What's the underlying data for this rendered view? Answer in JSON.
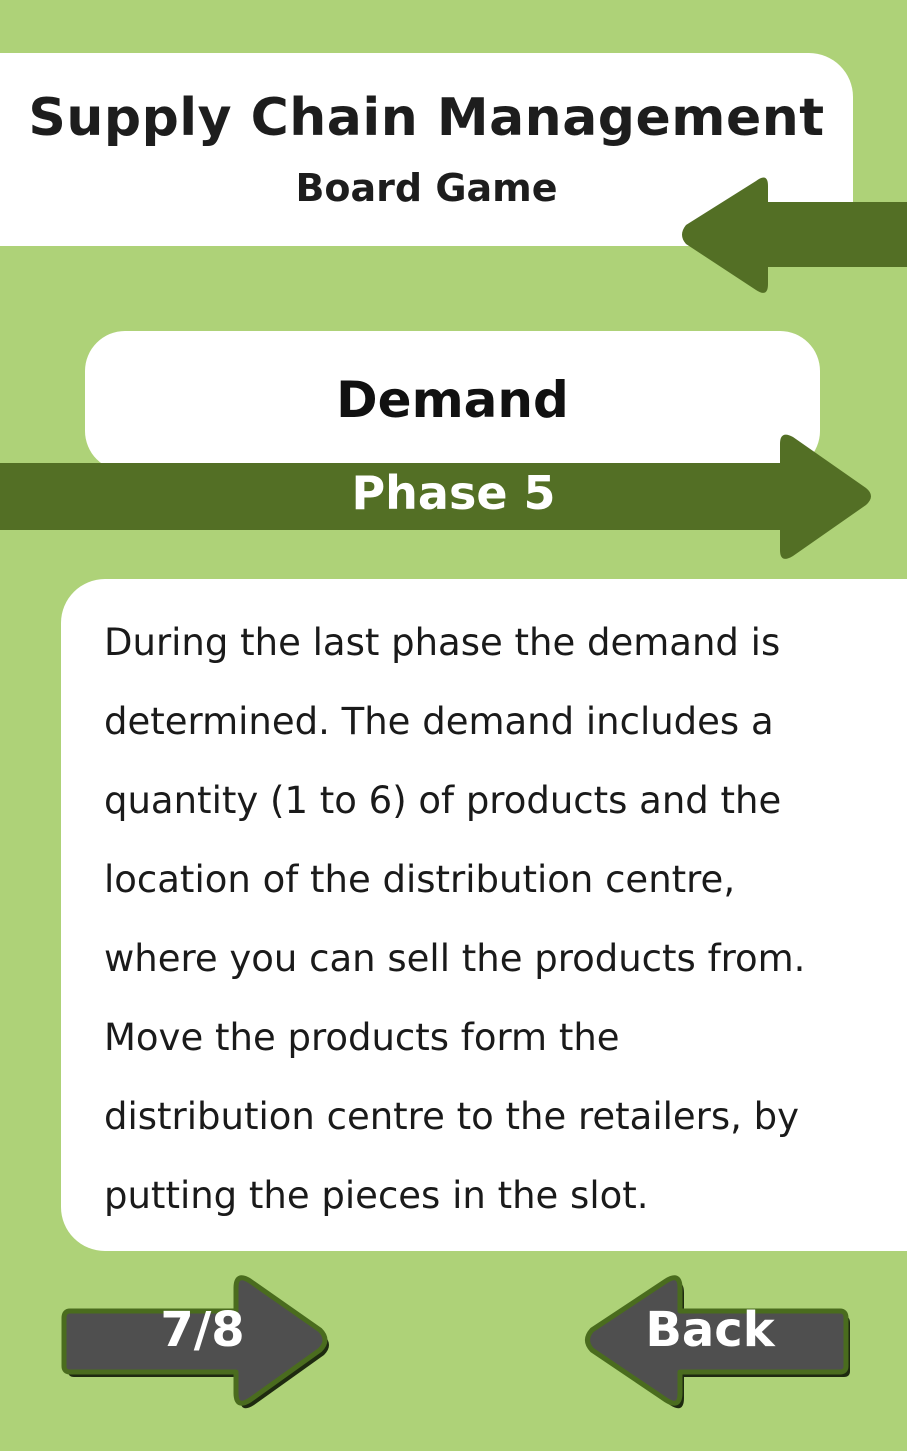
{
  "header": {
    "title": "Supply Chain Management",
    "subtitle": "Board Game"
  },
  "phase": {
    "title": "Demand",
    "label": "Phase 5"
  },
  "description": {
    "lines": [
      "During the last phase the demand is",
      "determined. The demand includes a",
      "quantity (1 to 6) of products and the",
      "location of the distribution centre,",
      "where you can sell the products from.",
      "Move the products form the",
      "distribution centre to the retailers, by",
      "putting the pieces in the slot."
    ]
  },
  "navigation": {
    "page_indicator": "7/8",
    "back_label": "Back"
  },
  "colors": {
    "background": "#aed278",
    "arrow_green": "#536f25",
    "button_gray": "#4f4f4f",
    "button_border": "#4a6c1e"
  },
  "icons": {
    "header_arrow": "left-arrow-icon",
    "phase_arrow": "right-arrow-icon"
  }
}
